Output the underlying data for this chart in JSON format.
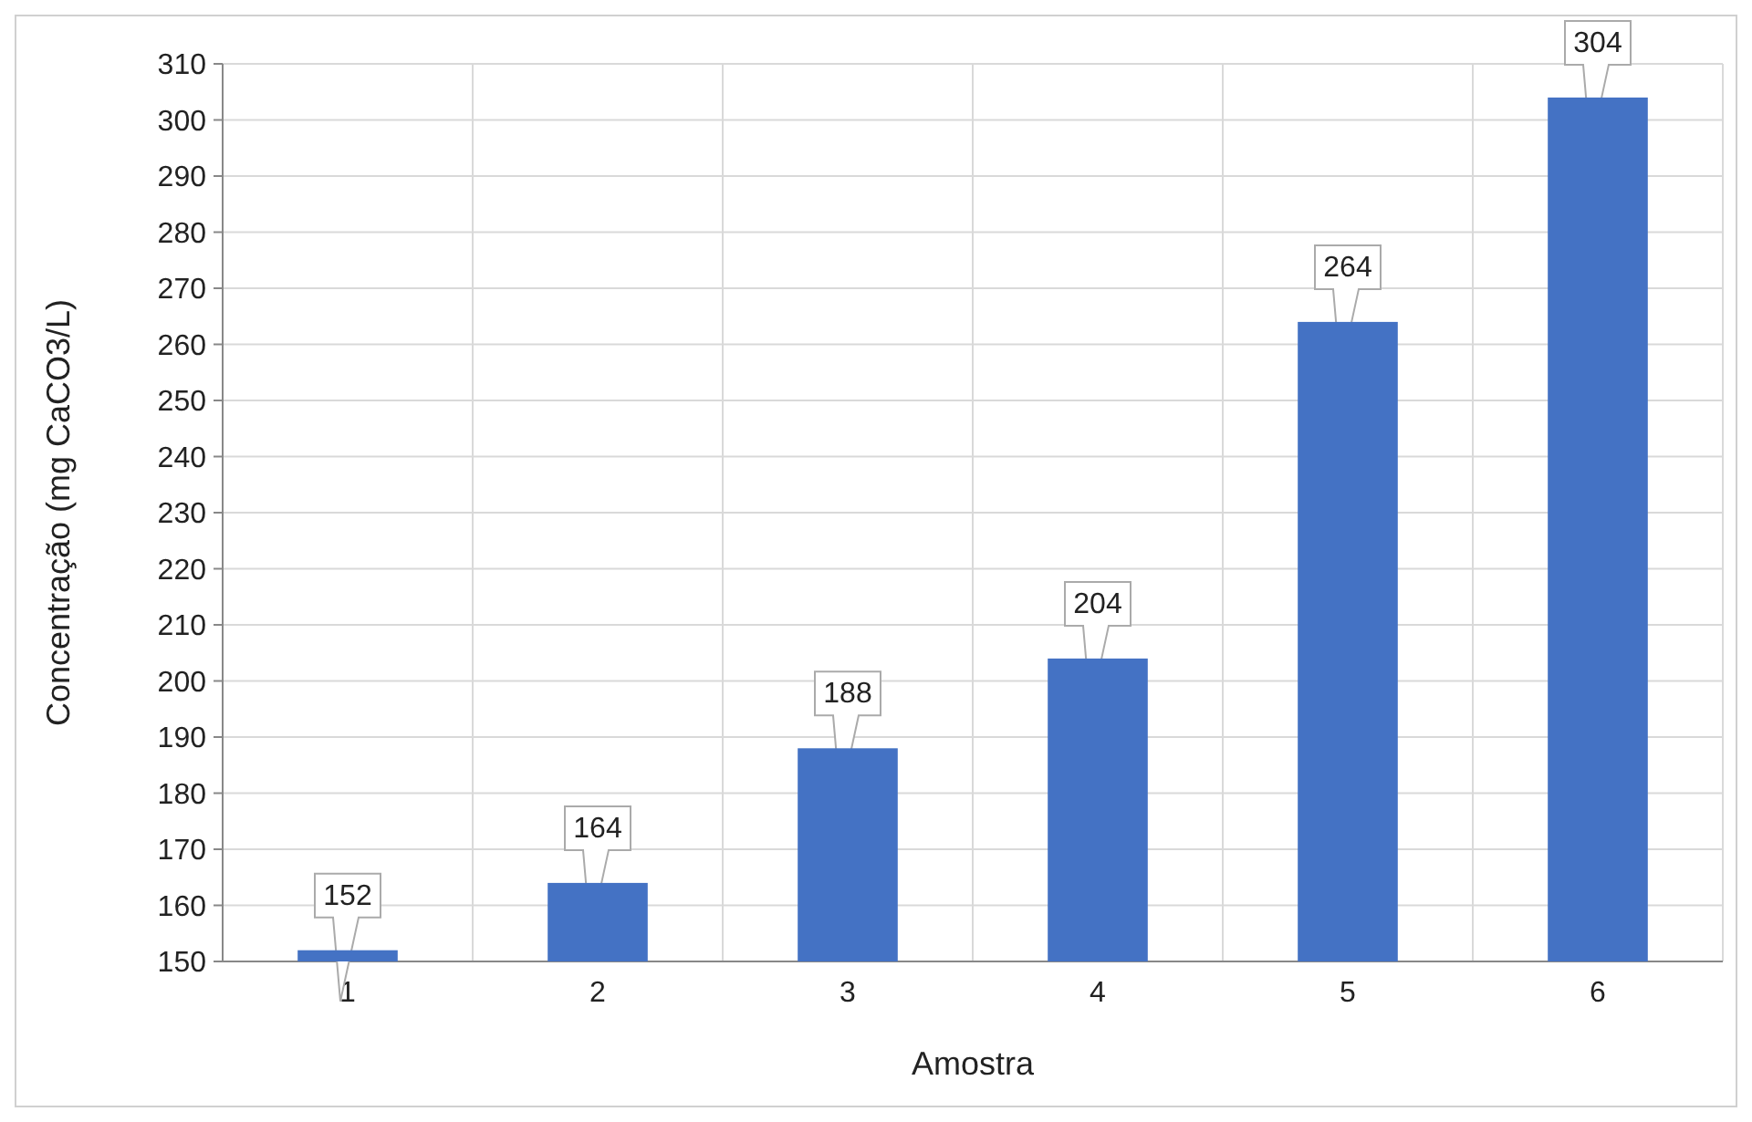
{
  "chart_data": {
    "type": "bar",
    "xlabel": "Amostra",
    "ylabel": "Concentração (mg CaCO3/L)",
    "categories": [
      "1",
      "2",
      "3",
      "4",
      "5",
      "6"
    ],
    "values": [
      152,
      164,
      188,
      204,
      264,
      304
    ],
    "color": "#4472c4",
    "ylim": [
      150,
      310
    ],
    "yticks": [
      150,
      160,
      170,
      180,
      190,
      200,
      210,
      220,
      230,
      240,
      250,
      260,
      270,
      280,
      290,
      300,
      310
    ],
    "grid": true,
    "data_labels": true
  }
}
